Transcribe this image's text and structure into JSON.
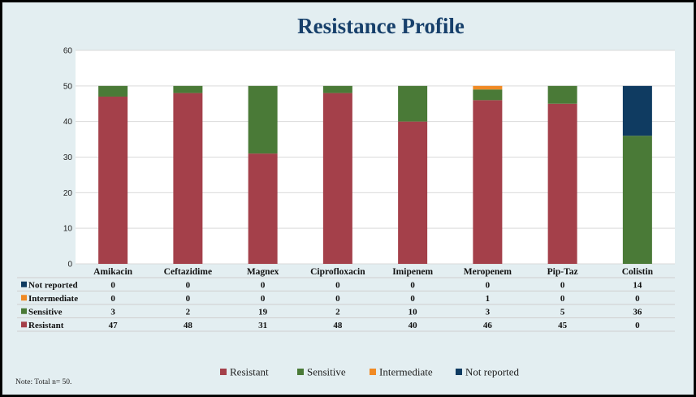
{
  "chart_data": {
    "type": "bar",
    "stacked": true,
    "title": "Resistance Profile",
    "categories": [
      "Amikacin",
      "Ceftazidime",
      "Magnex",
      "Ciprofloxacin",
      "Imipenem",
      "Meropenem",
      "Pip-Taz",
      "Colistin"
    ],
    "series": [
      {
        "name": "Resistant",
        "color": "#a4404a",
        "values": [
          47,
          48,
          31,
          48,
          40,
          46,
          45,
          0
        ]
      },
      {
        "name": "Sensitive",
        "color": "#4a7a37",
        "values": [
          3,
          2,
          19,
          2,
          10,
          3,
          5,
          36
        ]
      },
      {
        "name": "Intermediate",
        "color": "#f08a24",
        "values": [
          0,
          0,
          0,
          0,
          0,
          1,
          0,
          0
        ]
      },
      {
        "name": "Not reported",
        "color": "#0f3b61",
        "values": [
          0,
          0,
          0,
          0,
          0,
          0,
          0,
          14
        ]
      }
    ],
    "table_row_order": [
      "Not reported",
      "Intermediate",
      "Sensitive",
      "Resistant"
    ],
    "legend_order": [
      "Resistant",
      "Sensitive",
      "Intermediate",
      "Not reported"
    ],
    "ylim": [
      0,
      60
    ],
    "yticks": [
      0,
      10,
      20,
      30,
      40,
      50,
      60
    ],
    "grid": true,
    "legend_position": "bottom",
    "data_table": true,
    "note": "Note: Total n= 50."
  }
}
